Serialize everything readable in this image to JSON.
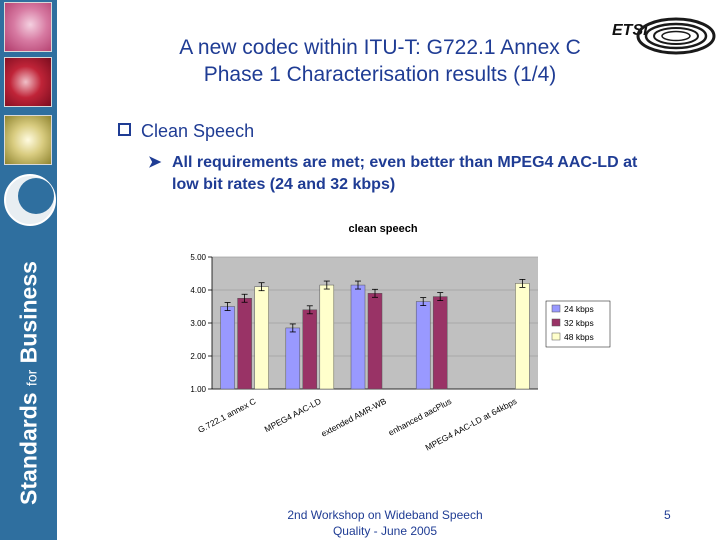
{
  "slide": {
    "title_line1": "A new codec within ITU-T: G722.1 Annex C",
    "title_line2": "Phase 1 Characterisation results (1/4)",
    "bullet1": "Clean Speech",
    "bullet2": "All requirements are met; even better than MPEG4 AAC-LD at low bit rates (24 and 32 kbps)",
    "footer_line1": "2nd Workshop on Wideband Speech",
    "footer_line2": "Quality - June 2005",
    "page_number": "5",
    "sidebar_text_main": "Standards",
    "sidebar_text_for": "for",
    "sidebar_text_business": "Business",
    "logo_text": "ETSI"
  },
  "chart_data": {
    "type": "bar",
    "title": "clean speech",
    "categories": [
      "G.722.1 annex C",
      "MPEG4 AAC-LD",
      "extended AMR-WB",
      "enhanced aacPlus",
      "MPEG4 AAC-LD at 64kbps"
    ],
    "series": [
      {
        "name": "24 kbps",
        "values": [
          3.5,
          2.85,
          4.15,
          3.65,
          null
        ],
        "color": "#9999ff"
      },
      {
        "name": "32 kbps",
        "values": [
          3.75,
          3.4,
          3.9,
          3.8,
          null
        ],
        "color": "#993366"
      },
      {
        "name": "48 kbps",
        "values": [
          4.1,
          4.15,
          null,
          null,
          4.2
        ],
        "color": "#ffffcc"
      }
    ],
    "error_bars": true,
    "yticks": [
      "1.00",
      "2.00",
      "3.00",
      "4.00",
      "5.00"
    ],
    "ylim": [
      1,
      5
    ],
    "xlabel": "",
    "ylabel": "",
    "legend": "right",
    "plot_background": "#c0c0c0"
  }
}
